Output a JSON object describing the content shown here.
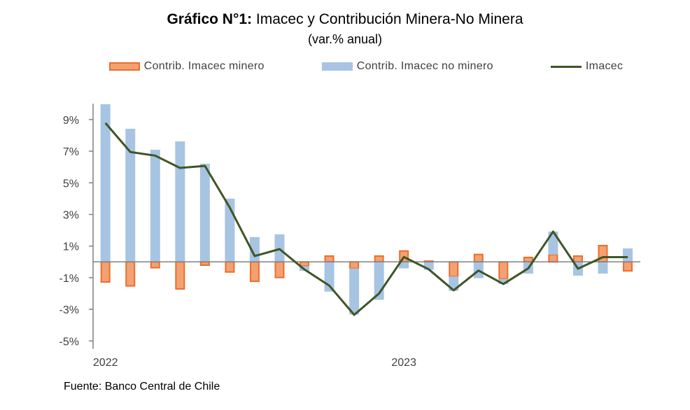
{
  "chart_data": {
    "type": "bar",
    "title_bold": "Gráfico N°1:",
    "title": "Imacec y Contribución Minera-No Minera",
    "subtitle": "(var.% anual)",
    "source": "Fuente: Banco Central de Chile",
    "xlabel": "",
    "ylabel": "",
    "ylim": [
      -5.5,
      10
    ],
    "yticks": [
      "9%",
      "7%",
      "5%",
      "3%",
      "1%",
      "-1%",
      "-3%",
      "-5%"
    ],
    "ytick_values": [
      9,
      7,
      5,
      3,
      1,
      -1,
      -3,
      -5
    ],
    "xtick_labels": [
      {
        "label": "2022",
        "index": 0
      },
      {
        "label": "2023",
        "index": 12
      }
    ],
    "categories": [
      "2022-01",
      "2022-02",
      "2022-03",
      "2022-04",
      "2022-05",
      "2022-06",
      "2022-07",
      "2022-08",
      "2022-09",
      "2022-10",
      "2022-11",
      "2022-12",
      "2023-01",
      "2023-02",
      "2023-03",
      "2023-04",
      "2023-05",
      "2023-06",
      "2023-07",
      "2023-08",
      "2023-09",
      "2023-10"
    ],
    "stacked": true,
    "grid": false,
    "legend_position": "top",
    "series": [
      {
        "name": "Contrib. Imacec minero",
        "type": "bar",
        "color": "#F2A272",
        "edge": "#ED6D2B",
        "values": [
          -1.27,
          -1.52,
          -0.37,
          -1.71,
          -0.21,
          -0.64,
          -1.23,
          -0.99,
          -0.27,
          0.37,
          -0.41,
          0.37,
          0.69,
          0.05,
          -0.92,
          0.47,
          -1.08,
          0.28,
          0.46,
          0.37,
          1.03,
          -0.57
        ]
      },
      {
        "name": "Contrib. Imacec no minero",
        "type": "bar",
        "color": "#A7C4E3",
        "values": [
          9.97,
          8.42,
          7.09,
          7.62,
          6.21,
          4.0,
          1.57,
          1.74,
          -0.3,
          -1.88,
          -2.92,
          -2.4,
          -0.41,
          -0.5,
          -0.91,
          -1.03,
          -0.32,
          -0.74,
          1.46,
          -0.87,
          -0.74,
          0.85
        ]
      },
      {
        "name": "Imacec",
        "type": "line",
        "color": "#3F5526",
        "values": [
          8.78,
          6.95,
          6.72,
          5.94,
          6.07,
          3.43,
          0.37,
          0.81,
          -0.48,
          -1.5,
          -3.35,
          -2.0,
          0.31,
          -0.47,
          -1.8,
          -0.55,
          -1.4,
          -0.41,
          1.92,
          -0.43,
          0.3,
          0.3
        ]
      }
    ]
  }
}
